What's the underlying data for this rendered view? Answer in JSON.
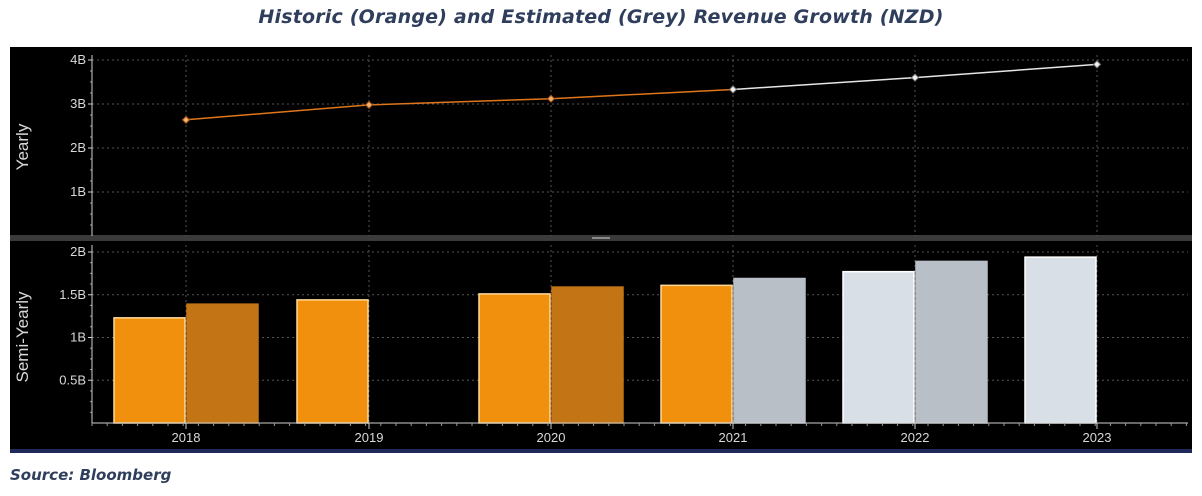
{
  "title": "Historic (Orange) and Estimated (Grey) Revenue Growth (NZD)",
  "source": "Source: Bloomberg",
  "colors": {
    "background": "#000000",
    "historic_line": "#e0761c",
    "estimated_line": "#e6e6e6",
    "historic_bar_h1": "#f0900c",
    "historic_bar_h2": "#c37414",
    "estimated_bar_h1": "#d9dfe7",
    "estimated_bar_h2": "#b8bfc6",
    "axis_text": "#d8d8d8"
  },
  "chart_data": [
    {
      "type": "line",
      "ylabel": "Yearly",
      "ylim": [
        0,
        4.2
      ],
      "yticks": [
        {
          "value": 1,
          "label": "1B"
        },
        {
          "value": 2,
          "label": "2B"
        },
        {
          "value": 3,
          "label": "3B"
        },
        {
          "value": 4,
          "label": "4B"
        }
      ],
      "grid": true,
      "series": [
        {
          "status": "historic",
          "x": [
            "2018",
            "2019",
            "2020",
            "2021"
          ],
          "values": [
            2.64,
            2.98,
            3.12,
            3.33
          ]
        },
        {
          "status": "estimated",
          "x": [
            "2021",
            "2022",
            "2023"
          ],
          "values": [
            3.33,
            3.6,
            3.9
          ]
        }
      ]
    },
    {
      "type": "bar",
      "ylabel": "Semi-Yearly",
      "ylim": [
        0,
        2.1
      ],
      "yticks": [
        {
          "value": 0.5,
          "label": "0.5B"
        },
        {
          "value": 1,
          "label": "1B"
        },
        {
          "value": 1.5,
          "label": "1.5B"
        },
        {
          "value": 2,
          "label": "2B"
        }
      ],
      "categories": [
        "2018",
        "2019",
        "2020",
        "2021",
        "2022",
        "2023"
      ],
      "grid": true,
      "bars": [
        {
          "year": "2018",
          "half": 1,
          "status": "historic",
          "value": 1.23
        },
        {
          "year": "2018",
          "half": 2,
          "status": "historic",
          "value": 1.39
        },
        {
          "year": "2019",
          "half": 1,
          "status": "historic",
          "value": 1.44
        },
        {
          "year": "2020",
          "half": 1,
          "status": "historic",
          "value": 1.51
        },
        {
          "year": "2020",
          "half": 2,
          "status": "historic",
          "value": 1.59
        },
        {
          "year": "2021",
          "half": 1,
          "status": "historic",
          "value": 1.61
        },
        {
          "year": "2021",
          "half": 2,
          "status": "estimated",
          "value": 1.69
        },
        {
          "year": "2022",
          "half": 1,
          "status": "estimated",
          "value": 1.77
        },
        {
          "year": "2022",
          "half": 2,
          "status": "estimated",
          "value": 1.89
        },
        {
          "year": "2023",
          "half": 1,
          "status": "estimated",
          "value": 1.94
        }
      ]
    }
  ]
}
